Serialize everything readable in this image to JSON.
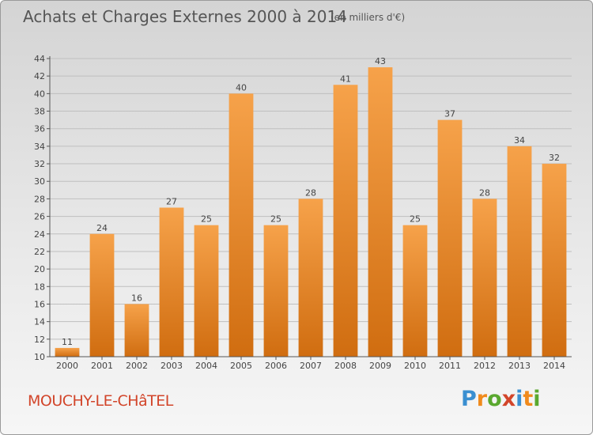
{
  "title": "Achats et Charges Externes 2000 à 2014",
  "subtitle": "(en milliers d'€)",
  "town": "MOUCHY-LE-CHâTEL",
  "logo": {
    "text": "Proxiti",
    "colors": [
      "#3a8fd1",
      "#f08a1c",
      "#5aa82f",
      "#d2452a",
      "#3a8fd1",
      "#f08a1c",
      "#5aa82f"
    ]
  },
  "colors": {
    "bar_light": "#f6a24a",
    "bar_dark": "#d06d10",
    "grid": "#bfbfbf",
    "axis": "#555555"
  },
  "chart_data": {
    "type": "bar",
    "categories": [
      "2000",
      "2001",
      "2002",
      "2003",
      "2004",
      "2005",
      "2006",
      "2007",
      "2008",
      "2009",
      "2010",
      "2011",
      "2012",
      "2013",
      "2014"
    ],
    "values": [
      11,
      24,
      16,
      27,
      25,
      40,
      25,
      28,
      41,
      43,
      25,
      37,
      28,
      34,
      32
    ],
    "ylim": [
      10,
      44
    ],
    "yticks": [
      10,
      12,
      14,
      16,
      18,
      20,
      22,
      24,
      26,
      28,
      30,
      32,
      34,
      36,
      38,
      40,
      42,
      44
    ],
    "grid": true,
    "data_labels": true
  }
}
